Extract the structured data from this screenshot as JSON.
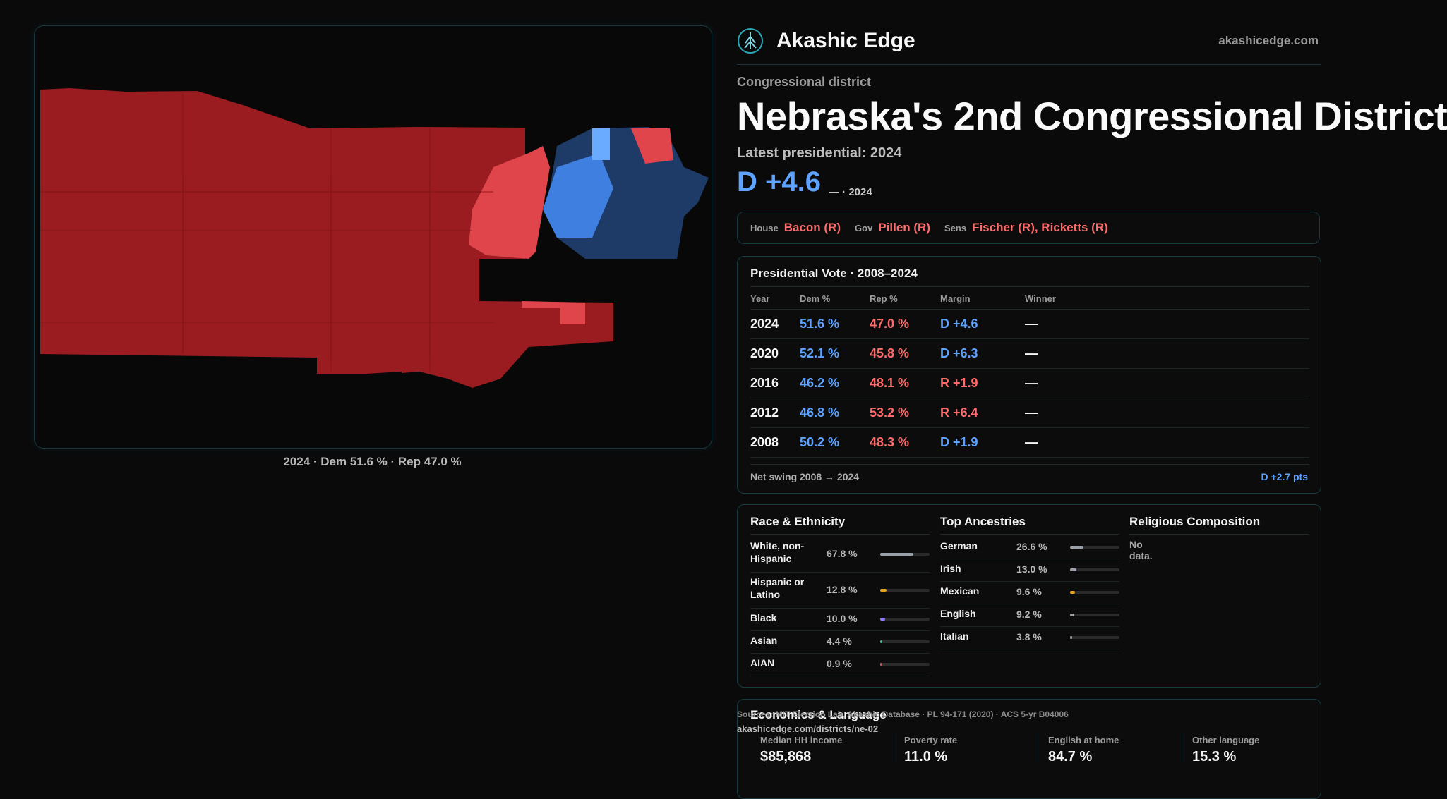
{
  "map_caption": "2024 · Dem 51.6 % · Rep 47.0 %",
  "brand": {
    "name": "Akashic Edge",
    "url": "akashicedge.com",
    "logo_icon": "tree-of-life-logo"
  },
  "header": {
    "kicker": "Congressional district",
    "title": "Nebraska's 2nd Congressional District",
    "latest_label": "Latest presidential: 2024",
    "margin": "D +4.6",
    "margin_sub": "— · 2024"
  },
  "officials": {
    "house_label": "House",
    "house_value": "Bacon (R)",
    "gov_label": "Gov",
    "gov_value": "Pillen (R)",
    "sens_label": "Sens",
    "sens_value": "Fischer (R), Ricketts (R)"
  },
  "presidential": {
    "title": "Presidential Vote · 2008–2024",
    "headers": {
      "year": "Year",
      "dem": "Dem %",
      "rep": "Rep %",
      "margin": "Margin",
      "winner": "Winner"
    },
    "rows": [
      {
        "year": "2024",
        "dem": "51.6 %",
        "rep": "47.0 %",
        "margin": "D +4.6",
        "winner": "—"
      },
      {
        "year": "2020",
        "dem": "52.1 %",
        "rep": "45.8 %",
        "margin": "D +6.3",
        "winner": "—"
      },
      {
        "year": "2016",
        "dem": "46.2 %",
        "rep": "48.1 %",
        "margin": "R +1.9",
        "winner": "—"
      },
      {
        "year": "2012",
        "dem": "46.8 %",
        "rep": "53.2 %",
        "margin": "R +6.4",
        "winner": "—"
      },
      {
        "year": "2008",
        "dem": "50.2 %",
        "rep": "48.3 %",
        "margin": "D +1.9",
        "winner": "—"
      }
    ],
    "swing_label": "Net swing 2008 → 2024",
    "swing_value": "D +2.7 pts"
  },
  "demographics": {
    "race": {
      "title": "Race & Ethnicity",
      "items": [
        {
          "label": "White, non-Hispanic",
          "value": "67.8 %",
          "pct": 67.8,
          "color": "#9aa0aa"
        },
        {
          "label": "Hispanic or Latino",
          "value": "12.8 %",
          "pct": 12.8,
          "color": "#e5a11a"
        },
        {
          "label": "Black",
          "value": "10.0 %",
          "pct": 10.0,
          "color": "#8b7cf6"
        },
        {
          "label": "Asian",
          "value": "4.4 %",
          "pct": 4.4,
          "color": "#36c08a"
        },
        {
          "label": "AIAN",
          "value": "0.9 %",
          "pct": 0.9,
          "color": "#d0566b"
        }
      ]
    },
    "ancestry": {
      "title": "Top Ancestries",
      "items": [
        {
          "label": "German",
          "value": "26.6 %",
          "pct": 26.6,
          "color": "#9aa0aa"
        },
        {
          "label": "Irish",
          "value": "13.0 %",
          "pct": 13.0,
          "color": "#9aa0aa"
        },
        {
          "label": "Mexican",
          "value": "9.6 %",
          "pct": 9.6,
          "color": "#e5a11a"
        },
        {
          "label": "English",
          "value": "9.2 %",
          "pct": 9.2,
          "color": "#9aa0aa"
        },
        {
          "label": "Italian",
          "value": "3.8 %",
          "pct": 3.8,
          "color": "#9aa0aa"
        }
      ]
    },
    "religion": {
      "title": "Religious Composition",
      "empty": "No data."
    }
  },
  "economics": {
    "title": "Economics & Language",
    "cells": [
      {
        "label": "Median HH income",
        "value": "$85,868"
      },
      {
        "label": "Poverty rate",
        "value": "11.0 %"
      },
      {
        "label": "English at home",
        "value": "84.7 %"
      },
      {
        "label": "Other language",
        "value": "15.3 %"
      }
    ]
  },
  "footer": {
    "sources": "Sources: MIT Election Lab, Akashic Database · PL 94-171 (2020) · ACS 5-yr B04006",
    "district_url": "akashicedge.com/districts/ne-02"
  },
  "colors": {
    "dem": "#5ea3ff",
    "rep": "#ff6b6b",
    "rep_dark": "#9a1c20",
    "dem_dark": "#1e3a66"
  }
}
